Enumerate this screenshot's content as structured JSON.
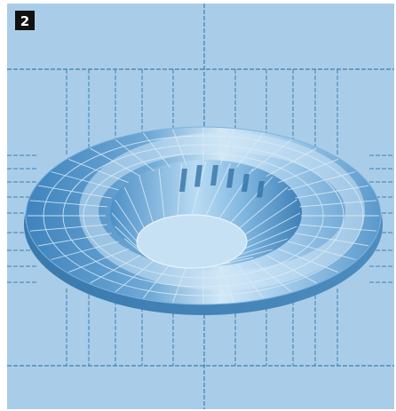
{
  "badge": {
    "label": "2"
  },
  "colors": {
    "background": "#a9cde9",
    "grid_line": "#3e7fae",
    "mesh_line": "#d9ecf8",
    "surface_dark": "#4e8fc3",
    "surface_mid": "#7db4dd",
    "surface_light": "#cfe6f6",
    "hole": "#c6e1f4",
    "badge_bg": "#111111",
    "badge_text": "#ffffff"
  },
  "icons": {
    "model": "dished-flange-mesh-icon"
  }
}
